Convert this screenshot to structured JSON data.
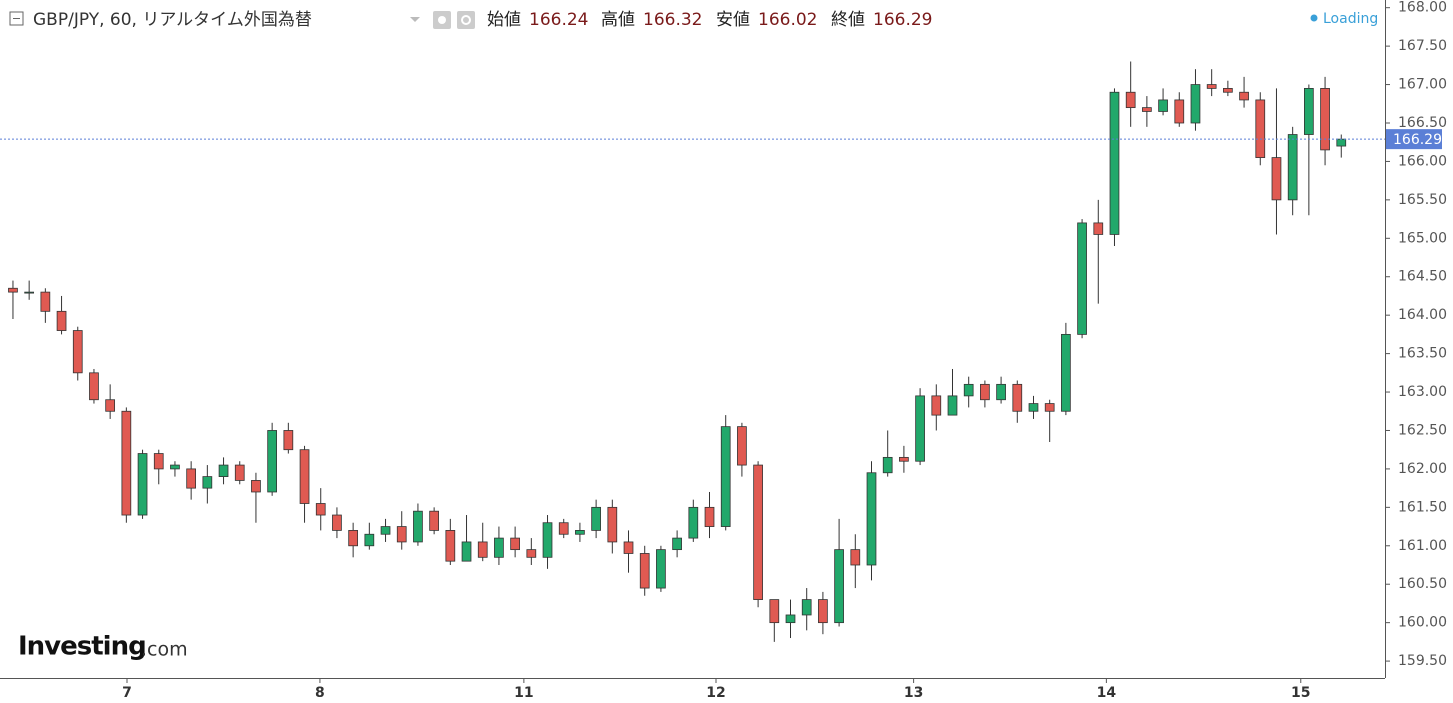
{
  "chart_data": {
    "type": "candlestick",
    "header": {
      "symbol": "GBP/JPY, 60, リアルタイム外国為替",
      "open_label": "始値",
      "open": 166.24,
      "high_label": "高値",
      "high": 166.32,
      "low_label": "安値",
      "low": 166.02,
      "close_label": "終値",
      "close": 166.29,
      "status": "Loading"
    },
    "logo": {
      "brand": "Investing",
      "suffix": ".com"
    },
    "x": [
      0,
      1,
      2,
      3,
      4,
      5,
      6,
      7,
      8,
      9,
      10,
      11,
      12,
      13,
      14,
      15,
      16,
      17,
      18,
      19,
      20,
      21,
      22,
      23,
      24,
      25,
      26,
      27,
      28,
      29,
      30,
      31,
      32,
      33,
      34,
      35,
      36,
      37,
      38,
      39,
      40,
      41,
      42,
      43,
      44,
      45,
      46,
      47,
      48,
      49,
      50,
      51,
      52,
      53,
      54,
      55,
      56,
      57,
      58,
      59,
      60,
      61,
      62,
      63,
      64,
      65,
      66,
      67,
      68,
      69,
      70,
      71,
      72,
      73,
      74,
      75,
      76,
      77,
      78,
      79,
      80,
      81,
      82
    ],
    "open": [
      164.35,
      164.3,
      164.3,
      164.05,
      163.8,
      163.25,
      162.9,
      162.75,
      161.4,
      162.2,
      162.0,
      162.0,
      161.75,
      161.9,
      162.05,
      161.85,
      161.7,
      162.5,
      162.25,
      161.55,
      161.4,
      161.2,
      161.0,
      161.15,
      161.25,
      161.05,
      161.45,
      161.2,
      160.8,
      161.05,
      160.85,
      161.1,
      160.95,
      160.85,
      161.3,
      161.15,
      161.2,
      161.5,
      161.05,
      160.9,
      160.45,
      160.95,
      161.1,
      161.5,
      161.25,
      162.55,
      162.05,
      160.3,
      160.0,
      160.1,
      160.3,
      160.0,
      160.95,
      160.75,
      161.95,
      162.15,
      162.1,
      162.95,
      162.7,
      162.95,
      163.1,
      162.9,
      163.1,
      162.75,
      162.85,
      162.75,
      163.75,
      165.2,
      165.05,
      166.9,
      166.7,
      166.65,
      166.8,
      166.5,
      167.0,
      166.95,
      166.9,
      166.8,
      166.05,
      165.5,
      166.35,
      166.95,
      166.2
    ],
    "high": [
      164.45,
      164.45,
      164.35,
      164.25,
      163.85,
      163.3,
      163.1,
      162.8,
      162.25,
      162.25,
      162.1,
      162.1,
      162.05,
      162.15,
      162.1,
      161.95,
      162.6,
      162.6,
      162.3,
      161.75,
      161.5,
      161.3,
      161.3,
      161.35,
      161.45,
      161.55,
      161.5,
      161.35,
      161.4,
      161.3,
      161.25,
      161.25,
      161.1,
      161.4,
      161.35,
      161.3,
      161.6,
      161.6,
      161.2,
      161.0,
      161.0,
      161.2,
      161.6,
      161.7,
      162.7,
      162.6,
      162.1,
      160.3,
      160.3,
      160.45,
      160.4,
      161.35,
      161.15,
      162.1,
      162.5,
      162.3,
      163.05,
      163.1,
      163.3,
      163.2,
      163.15,
      163.2,
      163.15,
      162.95,
      162.9,
      163.9,
      165.25,
      165.5,
      166.95,
      167.3,
      166.85,
      166.95,
      166.9,
      167.2,
      167.2,
      167.05,
      167.1,
      166.9,
      166.95,
      166.45,
      167.0,
      167.1,
      166.35
    ],
    "low": [
      163.95,
      164.2,
      163.9,
      163.75,
      163.15,
      162.85,
      162.65,
      161.3,
      161.35,
      161.8,
      161.9,
      161.6,
      161.55,
      161.8,
      161.8,
      161.3,
      161.65,
      162.2,
      161.3,
      161.2,
      161.1,
      160.85,
      160.95,
      161.05,
      160.95,
      161.0,
      161.15,
      160.75,
      160.8,
      160.8,
      160.75,
      160.85,
      160.75,
      160.7,
      161.1,
      161.05,
      161.1,
      160.9,
      160.65,
      160.35,
      160.4,
      160.85,
      161.05,
      161.1,
      161.2,
      161.9,
      160.2,
      159.75,
      159.8,
      159.9,
      159.85,
      159.95,
      160.45,
      160.55,
      161.9,
      161.95,
      162.05,
      162.5,
      162.7,
      162.8,
      162.8,
      162.85,
      162.6,
      162.65,
      162.35,
      162.7,
      163.7,
      164.15,
      164.9,
      166.45,
      166.45,
      166.6,
      166.45,
      166.4,
      166.85,
      166.85,
      166.7,
      165.95,
      165.05,
      165.3,
      165.3,
      165.95,
      166.05
    ],
    "close": [
      164.3,
      164.3,
      164.05,
      163.8,
      163.25,
      162.9,
      162.75,
      161.4,
      162.2,
      162.0,
      162.05,
      161.75,
      161.9,
      162.05,
      161.85,
      161.7,
      162.5,
      162.25,
      161.55,
      161.4,
      161.2,
      161.0,
      161.15,
      161.25,
      161.05,
      161.45,
      161.2,
      160.8,
      161.05,
      160.85,
      161.1,
      160.95,
      160.85,
      161.3,
      161.15,
      161.2,
      161.5,
      161.05,
      160.9,
      160.45,
      160.95,
      161.1,
      161.5,
      161.25,
      162.55,
      162.05,
      160.3,
      160.0,
      160.1,
      160.3,
      160.0,
      160.95,
      160.75,
      161.95,
      162.15,
      162.1,
      162.95,
      162.7,
      162.95,
      163.1,
      162.9,
      163.1,
      162.75,
      162.85,
      162.75,
      163.75,
      165.2,
      165.05,
      166.9,
      166.7,
      166.65,
      166.8,
      166.5,
      167.0,
      166.95,
      166.9,
      166.8,
      166.05,
      165.5,
      166.35,
      166.95,
      166.15,
      166.29
    ],
    "up_color": "#22a86b",
    "down_color": "#e05a52",
    "wick_color": "#333333",
    "price_line_color": "#5b7fd6",
    "xlim": [
      -0.8,
      84.7
    ],
    "xticks": [
      {
        "value": 7.04,
        "label": "7"
      },
      {
        "value": 18.95,
        "label": "8"
      },
      {
        "value": 31.54,
        "label": "11"
      },
      {
        "value": 43.4,
        "label": "12"
      },
      {
        "value": 55.6,
        "label": "13"
      },
      {
        "value": 67.5,
        "label": "14"
      },
      {
        "value": 79.5,
        "label": "15"
      }
    ],
    "ylim": [
      159.28,
      168.1
    ],
    "yticks": [
      {
        "value": 159.5,
        "label": "159.50"
      },
      {
        "value": 160,
        "label": "160.00"
      },
      {
        "value": 160.5,
        "label": "160.50"
      },
      {
        "value": 161,
        "label": "161.00"
      },
      {
        "value": 161.5,
        "label": "161.50"
      },
      {
        "value": 162,
        "label": "162.00"
      },
      {
        "value": 162.5,
        "label": "162.50"
      },
      {
        "value": 163,
        "label": "163.00"
      },
      {
        "value": 163.5,
        "label": "163.50"
      },
      {
        "value": 164,
        "label": "164.00"
      },
      {
        "value": 164.5,
        "label": "164.50"
      },
      {
        "value": 165,
        "label": "165.00"
      },
      {
        "value": 165.5,
        "label": "165.50"
      },
      {
        "value": 166,
        "label": "166.00"
      },
      {
        "value": 166.5,
        "label": "166.50"
      },
      {
        "value": 167,
        "label": "167.00"
      },
      {
        "value": 167.5,
        "label": "167.50"
      },
      {
        "value": 168,
        "label": "168.00"
      }
    ],
    "grid": false
  }
}
